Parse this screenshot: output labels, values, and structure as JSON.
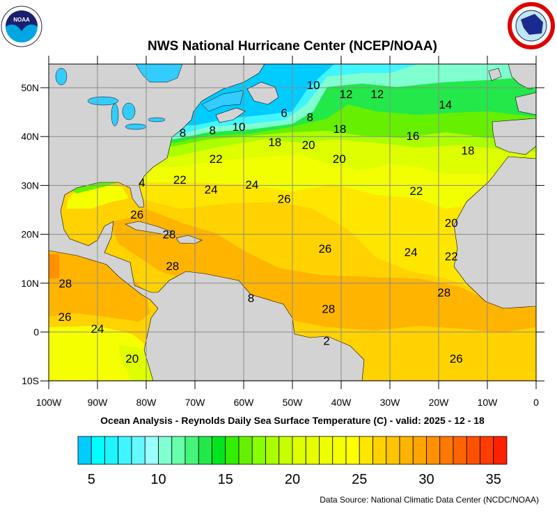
{
  "header": {
    "title": "NWS National Hurricane Center (NCEP/NOAA)",
    "left_logo": "NOAA",
    "right_logo": "NATIONAL WEATHER SERVICE"
  },
  "map": {
    "region": "North Atlantic",
    "lon_range": [
      -100,
      0
    ],
    "lat_range": [
      -10,
      55
    ],
    "lon_ticks": [
      "100W",
      "90W",
      "80W",
      "70W",
      "60W",
      "50W",
      "40W",
      "30W",
      "20W",
      "10W",
      "0"
    ],
    "lat_ticks": [
      "50N",
      "40N",
      "30N",
      "20N",
      "10N",
      "0",
      "10S"
    ],
    "grid": true,
    "land_color": "#d3d3d3",
    "contour_labels": [
      {
        "text": "10",
        "lon": -45.7,
        "lat": 50.6
      },
      {
        "text": "12",
        "lon": -39.0,
        "lat": 48.7
      },
      {
        "text": "12",
        "lon": -32.6,
        "lat": 48.7
      },
      {
        "text": "14",
        "lon": -18.6,
        "lat": 46.6
      },
      {
        "text": "6",
        "lon": -51.7,
        "lat": 44.9
      },
      {
        "text": "8",
        "lon": -46.4,
        "lat": 44.0
      },
      {
        "text": "8",
        "lon": -66.4,
        "lat": 41.3
      },
      {
        "text": "10",
        "lon": -61.0,
        "lat": 42.0
      },
      {
        "text": "8",
        "lon": -72.5,
        "lat": 40.8
      },
      {
        "text": "18",
        "lon": -40.3,
        "lat": 41.6
      },
      {
        "text": "16",
        "lon": -25.3,
        "lat": 40.2
      },
      {
        "text": "18",
        "lon": -14.0,
        "lat": 37.2
      },
      {
        "text": "18",
        "lon": -53.6,
        "lat": 38.9
      },
      {
        "text": "20",
        "lon": -46.7,
        "lat": 38.3
      },
      {
        "text": "20",
        "lon": -40.4,
        "lat": 35.5
      },
      {
        "text": "22",
        "lon": -65.7,
        "lat": 35.5
      },
      {
        "text": "22",
        "lon": -73.1,
        "lat": 31.2
      },
      {
        "text": "4",
        "lon": -80.9,
        "lat": 30.6
      },
      {
        "text": "24",
        "lon": -66.7,
        "lat": 29.2
      },
      {
        "text": "24",
        "lon": -58.3,
        "lat": 30.2
      },
      {
        "text": "26",
        "lon": -51.7,
        "lat": 27.3
      },
      {
        "text": "22",
        "lon": -24.6,
        "lat": 28.9
      },
      {
        "text": "20",
        "lon": -17.4,
        "lat": 22.4
      },
      {
        "text": "26",
        "lon": -81.9,
        "lat": 24.1
      },
      {
        "text": "28",
        "lon": -75.3,
        "lat": 20.0
      },
      {
        "text": "26",
        "lon": -43.3,
        "lat": 17.1
      },
      {
        "text": "24",
        "lon": -25.7,
        "lat": 16.4
      },
      {
        "text": "22",
        "lon": -17.4,
        "lat": 15.5
      },
      {
        "text": "28",
        "lon": -74.6,
        "lat": 13.5
      },
      {
        "text": "28",
        "lon": -96.6,
        "lat": 10.0
      },
      {
        "text": "8",
        "lon": -58.5,
        "lat": 7.0
      },
      {
        "text": "28",
        "lon": -18.9,
        "lat": 8.1
      },
      {
        "text": "28",
        "lon": -42.6,
        "lat": 4.8
      },
      {
        "text": "26",
        "lon": -96.7,
        "lat": 3.1
      },
      {
        "text": "24",
        "lon": -90.0,
        "lat": 0.7
      },
      {
        "text": "2",
        "lon": -43.0,
        "lat": -1.8
      },
      {
        "text": "20",
        "lon": -82.9,
        "lat": -5.4
      },
      {
        "text": "26",
        "lon": -16.4,
        "lat": -5.4
      }
    ]
  },
  "subtitle": "Ocean Analysis - Reynolds Daily Sea Surface Temperature (C) - valid: 2025 - 12 - 18",
  "colorbar": {
    "min": 4,
    "max": 36,
    "step": 1,
    "labels": [
      "5",
      "10",
      "15",
      "20",
      "25",
      "30",
      "35"
    ],
    "label_values": [
      5,
      10,
      15,
      20,
      25,
      30,
      35
    ],
    "colors": [
      "#00ccff",
      "#00ffff",
      "#1ef5ff",
      "#40f5ff",
      "#66f8ff",
      "#99ffff",
      "#80ffd0",
      "#66ffaa",
      "#44f57a",
      "#22e84a",
      "#00e61e",
      "#33ee00",
      "#66f000",
      "#88ff00",
      "#aaff00",
      "#c8ff00",
      "#ddff00",
      "#e6ff00",
      "#eeff00",
      "#f6ff00",
      "#ffff00",
      "#ffe600",
      "#ffd200",
      "#ffc300",
      "#ffb400",
      "#ffa500",
      "#ff9000",
      "#ff7800",
      "#ff6400",
      "#ff5000",
      "#ff3c00",
      "#ff2000"
    ]
  },
  "footer": {
    "data_source": "Data Source: National Climatic Data Center (NCDC/NOAA)"
  }
}
